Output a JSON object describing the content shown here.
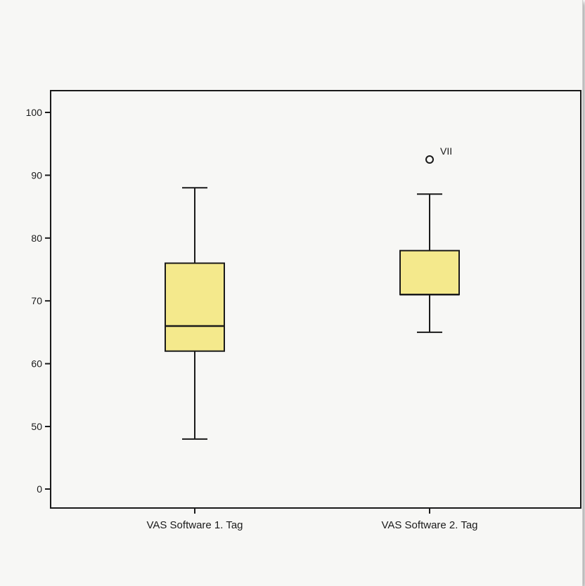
{
  "chart_data": {
    "type": "boxplot",
    "title": "",
    "xlabel": "",
    "ylabel": "",
    "y_ticks": [
      "0",
      "50",
      "60",
      "70",
      "80",
      "90",
      "100"
    ],
    "grid": false,
    "legend": "none",
    "box_fill": "#f4e98c",
    "line_color": "#1a1a1a",
    "categories": [
      "VAS Software 1. Tag",
      "VAS Software 2. Tag"
    ],
    "boxes": [
      {
        "category": "VAS Software 1. Tag",
        "whisker_low": 48,
        "q1": 62,
        "median": 66,
        "q3": 76,
        "whisker_high": 88,
        "outliers": []
      },
      {
        "category": "VAS Software 2. Tag",
        "whisker_low": 65,
        "q1": 71,
        "median": 71,
        "q3": 78,
        "whisker_high": 87,
        "outliers": [
          {
            "value": 92.5,
            "label": "VII"
          }
        ]
      }
    ]
  }
}
